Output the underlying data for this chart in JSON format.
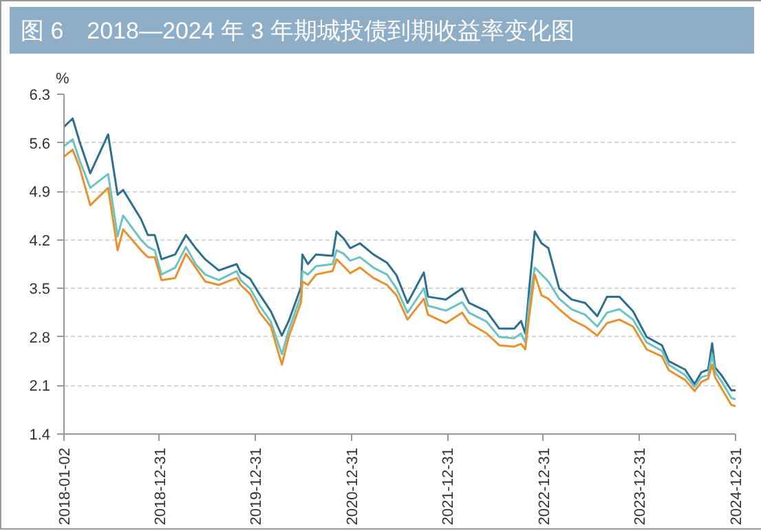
{
  "chart_data": {
    "type": "line",
    "title": "图 6　2018—2024 年 3 年期城投债到期收益率变化图",
    "ylabel": "%",
    "x": [
      "2018-01-02",
      "2018-02-04",
      "2018-03-02",
      "2018-04-12",
      "2018-06-19",
      "2018-07-25",
      "2018-08-15",
      "2018-10-22",
      "2018-11-17",
      "2018-12-13",
      "2019-01-08",
      "2019-03-01",
      "2019-04-11",
      "2019-05-18",
      "2019-06-23",
      "2019-08-14",
      "2019-10-21",
      "2019-11-05",
      "2019-12-11",
      "2020-01-17",
      "2020-02-28",
      "2020-04-10",
      "2020-05-06",
      "2020-06-22",
      "2020-06-27",
      "2020-07-18",
      "2020-08-18",
      "2020-10-20",
      "2020-11-04",
      "2020-12-01",
      "2020-12-26",
      "2021-02-01",
      "2021-03-24",
      "2021-05-15",
      "2021-06-20",
      "2021-08-01",
      "2021-10-02",
      "2021-10-18",
      "2021-12-25",
      "2022-02-25",
      "2022-03-23",
      "2022-05-29",
      "2022-07-16",
      "2022-09-11",
      "2022-10-07",
      "2022-10-23",
      "2022-11-07",
      "2022-11-28",
      "2022-12-24",
      "2023-01-19",
      "2023-03-01",
      "2023-04-17",
      "2023-06-08",
      "2023-07-24",
      "2023-08-30",
      "2023-10-16",
      "2023-12-07",
      "2024-01-28",
      "2024-03-26",
      "2024-04-21",
      "2024-06-22",
      "2024-07-28",
      "2024-08-23",
      "2024-09-18",
      "2024-10-03",
      "2024-10-14",
      "2024-11-09",
      "2024-12-15",
      "2024-12-31"
    ],
    "series": [
      {
        "color": "#2e6f8e",
        "values": [
          5.83,
          5.95,
          5.62,
          5.16,
          5.72,
          4.85,
          4.92,
          4.5,
          4.27,
          4.27,
          3.92,
          3.99,
          4.27,
          4.08,
          3.92,
          3.76,
          3.85,
          3.73,
          3.64,
          3.41,
          3.17,
          2.82,
          3.03,
          3.52,
          3.99,
          3.85,
          3.99,
          3.97,
          4.32,
          4.22,
          4.08,
          4.15,
          3.99,
          3.87,
          3.69,
          3.29,
          3.73,
          3.38,
          3.34,
          3.5,
          3.29,
          3.17,
          2.92,
          2.92,
          3.03,
          2.85,
          3.5,
          4.32,
          4.15,
          4.08,
          3.5,
          3.34,
          3.29,
          3.1,
          3.38,
          3.38,
          3.17,
          2.8,
          2.68,
          2.45,
          2.33,
          2.12,
          2.29,
          2.33,
          2.71,
          2.36,
          2.24,
          2.03,
          2.03
        ]
      },
      {
        "color": "#6cc3c6",
        "values": [
          5.55,
          5.65,
          5.35,
          4.95,
          5.15,
          4.25,
          4.55,
          4.2,
          4.1,
          4.05,
          3.7,
          3.8,
          4.1,
          3.85,
          3.7,
          3.62,
          3.75,
          3.62,
          3.5,
          3.25,
          3.02,
          2.55,
          2.9,
          3.4,
          3.75,
          3.7,
          3.82,
          3.85,
          4.05,
          4.0,
          3.9,
          3.95,
          3.8,
          3.7,
          3.5,
          3.15,
          3.5,
          3.25,
          3.18,
          3.3,
          3.15,
          3.02,
          2.8,
          2.78,
          2.85,
          2.72,
          3.3,
          3.8,
          3.7,
          3.6,
          3.35,
          3.2,
          3.12,
          2.95,
          3.15,
          3.2,
          3.05,
          2.72,
          2.6,
          2.4,
          2.25,
          2.08,
          2.22,
          2.25,
          2.55,
          2.3,
          2.15,
          1.92,
          1.9
        ]
      },
      {
        "color": "#e8912d",
        "values": [
          5.4,
          5.5,
          5.25,
          4.7,
          4.95,
          4.05,
          4.35,
          4.05,
          3.95,
          3.95,
          3.62,
          3.65,
          4.0,
          3.8,
          3.6,
          3.55,
          3.65,
          3.55,
          3.42,
          3.15,
          2.95,
          2.4,
          2.8,
          3.3,
          3.6,
          3.55,
          3.7,
          3.75,
          3.92,
          3.82,
          3.72,
          3.8,
          3.65,
          3.55,
          3.4,
          3.05,
          3.35,
          3.12,
          3.0,
          3.15,
          3.0,
          2.85,
          2.68,
          2.66,
          2.7,
          2.62,
          3.1,
          3.7,
          3.4,
          3.35,
          3.2,
          3.05,
          2.95,
          2.82,
          3.0,
          3.05,
          2.95,
          2.62,
          2.52,
          2.32,
          2.18,
          2.02,
          2.15,
          2.2,
          2.4,
          2.22,
          2.05,
          1.82,
          1.8
        ]
      }
    ],
    "xlim": [
      "2018-01-02",
      "2024-12-31"
    ],
    "xticks": [
      "2018-01-02",
      "2018-12-31",
      "2019-12-31",
      "2020-12-31",
      "2021-12-31",
      "2022-12-31",
      "2023-12-31",
      "2024-12-31"
    ],
    "ylim": [
      1.4,
      6.3
    ],
    "yticks": [
      1.4,
      2.1,
      2.8,
      3.5,
      4.2,
      4.9,
      5.6,
      6.3
    ],
    "grid": "y",
    "line_style": "solid",
    "marker": "none"
  }
}
